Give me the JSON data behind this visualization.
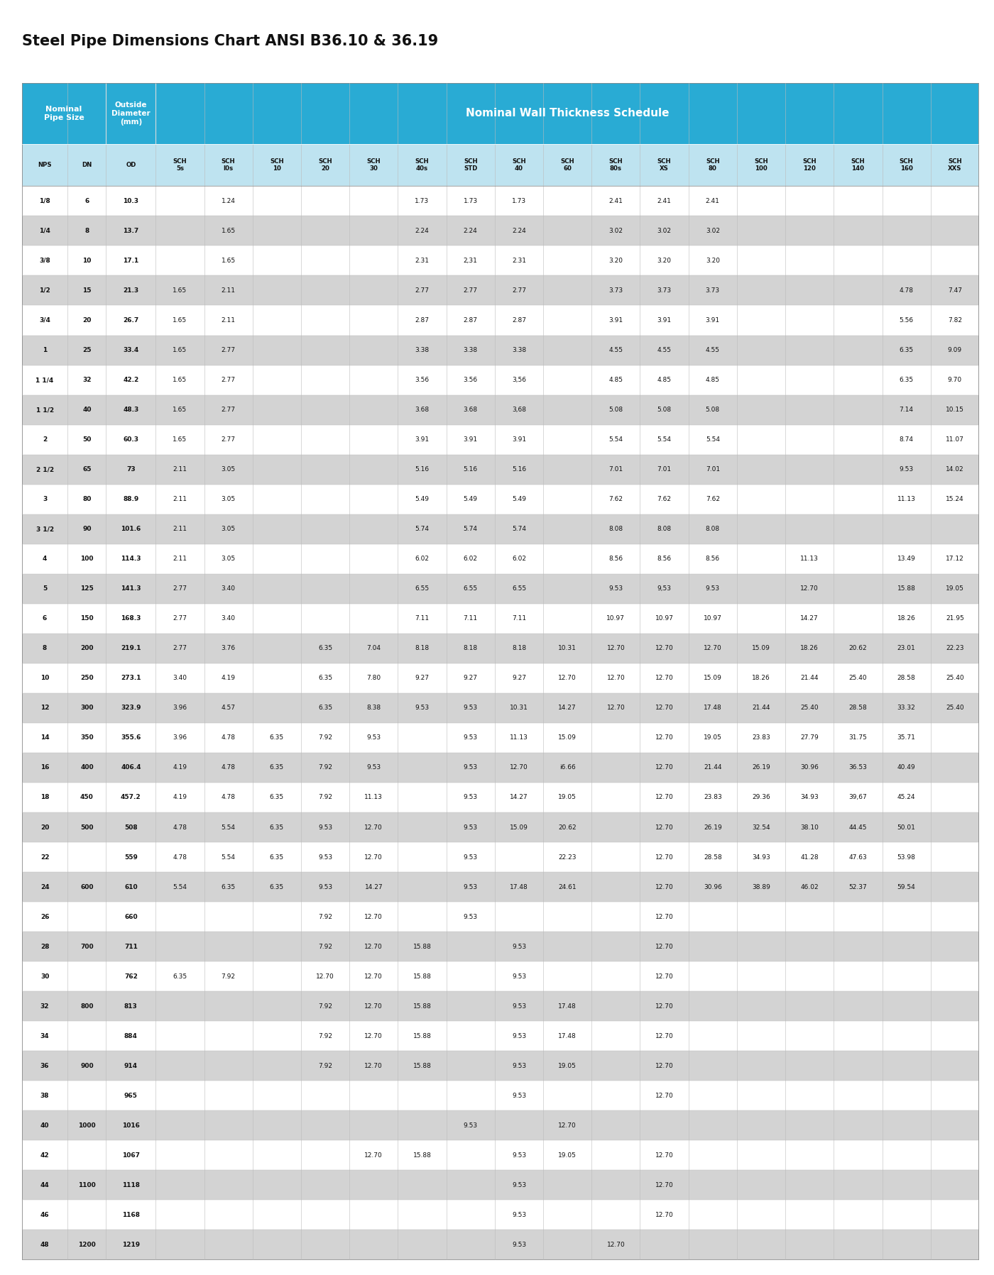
{
  "title": "Steel Pipe Dimensions Chart ANSI B36.10 & 36.19",
  "header_bg_color": "#29ABD4",
  "header_text_color": "#FFFFFF",
  "col_header_bg_color": "#BEE3F0",
  "row_even_color": "#FFFFFF",
  "row_odd_color": "#D3D3D3",
  "border_color": "#AAAAAA",
  "columns": [
    "NPS",
    "DN",
    "OD",
    "SCH\n5s",
    "SCH\nI0s",
    "SCH\n10",
    "SCH\n20",
    "SCH\n30",
    "SCH\n40s",
    "SCH\nSTD",
    "SCH\n40",
    "SCH\n60",
    "SCH\n80s",
    "SCH\nXS",
    "SCH\n80",
    "SCH\n100",
    "SCH\n120",
    "SCH\n140",
    "SCH\n160",
    "SCH\nXXS"
  ],
  "rows": [
    [
      "1/8",
      "6",
      "10.3",
      "",
      "1.24",
      "",
      "",
      "",
      "1.73",
      "1.73",
      "1.73",
      "",
      "2.41",
      "2.41",
      "2.41",
      "",
      "",
      "",
      "",
      ""
    ],
    [
      "1/4",
      "8",
      "13.7",
      "",
      "1.65",
      "",
      "",
      "",
      "2.24",
      "2.24",
      "2.24",
      "",
      "3.02",
      "3.02",
      "3.02",
      "",
      "",
      "",
      "",
      ""
    ],
    [
      "3/8",
      "10",
      "17.1",
      "",
      "1.65",
      "",
      "",
      "",
      "2.31",
      "2,31",
      "2.31",
      "",
      "3.20",
      "3.20",
      "3.20",
      "",
      "",
      "",
      "",
      ""
    ],
    [
      "1/2",
      "15",
      "21.3",
      "1.65",
      "2.11",
      "",
      "",
      "",
      "2.77",
      "2.77",
      "2.77",
      "",
      "3.73",
      "3.73",
      "3.73",
      "",
      "",
      "",
      "4.78",
      "7.47"
    ],
    [
      "3/4",
      "20",
      "26.7",
      "1.65",
      "2.11",
      "",
      "",
      "",
      "2.87",
      "2.87",
      "2.87",
      "",
      "3.91",
      "3.91",
      "3.91",
      "",
      "",
      "",
      "5.56",
      "7.82"
    ],
    [
      "1",
      "25",
      "33.4",
      "1.65",
      "2.77",
      "",
      "",
      "",
      "3.38",
      "3.38",
      "3.38",
      "",
      "4.55",
      "4.55",
      "4.55",
      "",
      "",
      "",
      "6.35",
      "9.09"
    ],
    [
      "1 1/4",
      "32",
      "42.2",
      "1.65",
      "2.77",
      "",
      "",
      "",
      "3.56",
      "3.56",
      "3,56",
      "",
      "4.85",
      "4.85",
      "4.85",
      "",
      "",
      "",
      "6.35",
      "9.70"
    ],
    [
      "1 1/2",
      "40",
      "48.3",
      "1.65",
      "2.77",
      "",
      "",
      "",
      "3.68",
      "3.68",
      "3,68",
      "",
      "5.08",
      "5.08",
      "5.08",
      "",
      "",
      "",
      "7.14",
      "10.15"
    ],
    [
      "2",
      "50",
      "60.3",
      "1.65",
      "2.77",
      "",
      "",
      "",
      "3.91",
      "3.91",
      "3.91",
      "",
      "5.54",
      "5.54",
      "5.54",
      "",
      "",
      "",
      "8.74",
      "11.07"
    ],
    [
      "2 1/2",
      "65",
      "73",
      "2.11",
      "3.05",
      "",
      "",
      "",
      "5.16",
      "5.16",
      "5.16",
      "",
      "7.01",
      "7.01",
      "7.01",
      "",
      "",
      "",
      "9.53",
      "14.02"
    ],
    [
      "3",
      "80",
      "88.9",
      "2.11",
      "3.05",
      "",
      "",
      "",
      "5.49",
      "5.49",
      "5.49",
      "",
      "7.62",
      "7.62",
      "7.62",
      "",
      "",
      "",
      "11.13",
      "15.24"
    ],
    [
      "3 1/2",
      "90",
      "101.6",
      "2.11",
      "3.05",
      "",
      "",
      "",
      "5.74",
      "5.74",
      "5.74",
      "",
      "8.08",
      "8.08",
      "8.08",
      "",
      "",
      "",
      "",
      ""
    ],
    [
      "4",
      "100",
      "114.3",
      "2.11",
      "3.05",
      "",
      "",
      "",
      "6.02",
      "6.02",
      "6.02",
      "",
      "8.56",
      "8.56",
      "8.56",
      "",
      "11.13",
      "",
      "13.49",
      "17.12"
    ],
    [
      "5",
      "125",
      "141.3",
      "2.77",
      "3.40",
      "",
      "",
      "",
      "6.55",
      "6.55",
      "6.55",
      "",
      "9.53",
      "9,53",
      "9.53",
      "",
      "12.70",
      "",
      "15.88",
      "19.05"
    ],
    [
      "6",
      "150",
      "168.3",
      "2.77",
      "3.40",
      "",
      "",
      "",
      "7.11",
      "7.11",
      "7.11",
      "",
      "10.97",
      "10.97",
      "10.97",
      "",
      "14.27",
      "",
      "18.26",
      "21.95"
    ],
    [
      "8",
      "200",
      "219.1",
      "2.77",
      "3.76",
      "",
      "6.35",
      "7.04",
      "8.18",
      "8.18",
      "8.18",
      "10.31",
      "12.70",
      "12.70",
      "12.70",
      "15.09",
      "18.26",
      "20.62",
      "23.01",
      "22.23"
    ],
    [
      "10",
      "250",
      "273.1",
      "3.40",
      "4.19",
      "",
      "6.35",
      "7.80",
      "9.27",
      "9.27",
      "9.27",
      "12.70",
      "12.70",
      "12.70",
      "15.09",
      "18.26",
      "21.44",
      "25.40",
      "28.58",
      "25.40"
    ],
    [
      "12",
      "300",
      "323.9",
      "3.96",
      "4.57",
      "",
      "6.35",
      "8.38",
      "9.53",
      "9.53",
      "10.31",
      "14.27",
      "12.70",
      "12.70",
      "17.48",
      "21.44",
      "25.40",
      "28.58",
      "33.32",
      "25.40"
    ],
    [
      "14",
      "350",
      "355.6",
      "3.96",
      "4.78",
      "6.35",
      "7.92",
      "9.53",
      "",
      "9.53",
      "11.13",
      "15.09",
      "",
      "12.70",
      "19.05",
      "23.83",
      "27.79",
      "31.75",
      "35.71",
      ""
    ],
    [
      "16",
      "400",
      "406.4",
      "4.19",
      "4.78",
      "6.35",
      "7.92",
      "9.53",
      "",
      "9.53",
      "12.70",
      "i6.66",
      "",
      "12.70",
      "21.44",
      "26.19",
      "30.96",
      "36.53",
      "40.49",
      ""
    ],
    [
      "18",
      "450",
      "457.2",
      "4.19",
      "4.78",
      "6.35",
      "7.92",
      "11.13",
      "",
      "9.53",
      "14.27",
      "19.05",
      "",
      "12.70",
      "23.83",
      "29.36",
      "34.93",
      "39,67",
      "45.24",
      ""
    ],
    [
      "20",
      "500",
      "508",
      "4.78",
      "5.54",
      "6.35",
      "9.53",
      "12.70",
      "",
      "9.53",
      "15.09",
      "20.62",
      "",
      "12.70",
      "26.19",
      "32.54",
      "38.10",
      "44.45",
      "50.01",
      ""
    ],
    [
      "22",
      "",
      "559",
      "4.78",
      "5.54",
      "6.35",
      "9.53",
      "12.70",
      "",
      "9.53",
      "",
      "22.23",
      "",
      "12.70",
      "28.58",
      "34.93",
      "41.28",
      "47.63",
      "53.98",
      ""
    ],
    [
      "24",
      "600",
      "610",
      "5.54",
      "6.35",
      "6.35",
      "9.53",
      "14.27",
      "",
      "9.53",
      "17.48",
      "24.61",
      "",
      "12.70",
      "30.96",
      "38.89",
      "46.02",
      "52.37",
      "59.54",
      ""
    ],
    [
      "26",
      "",
      "660",
      "",
      "",
      "",
      "7.92",
      "12.70",
      "",
      "9.53",
      "",
      "",
      "",
      "12.70",
      "",
      "",
      "",
      "",
      "",
      ""
    ],
    [
      "28",
      "700",
      "711",
      "",
      "",
      "",
      "7.92",
      "12.70",
      "15.88",
      "",
      "9.53",
      "",
      "",
      "12.70",
      "",
      "",
      "",
      "",
      "",
      ""
    ],
    [
      "30",
      "",
      "762",
      "6.35",
      "7.92",
      "",
      "12.70",
      "12.70",
      "15.88",
      "",
      "9.53",
      "",
      "",
      "12.70",
      "",
      "",
      "",
      "",
      "",
      ""
    ],
    [
      "32",
      "800",
      "813",
      "",
      "",
      "",
      "7.92",
      "12.70",
      "15.88",
      "",
      "9.53",
      "17.48",
      "",
      "12.70",
      "",
      "",
      "",
      "",
      "",
      ""
    ],
    [
      "34",
      "",
      "884",
      "",
      "",
      "",
      "7.92",
      "12.70",
      "15.88",
      "",
      "9.53",
      "17.48",
      "",
      "12.70",
      "",
      "",
      "",
      "",
      "",
      ""
    ],
    [
      "36",
      "900",
      "914",
      "",
      "",
      "",
      "7.92",
      "12.70",
      "15.88",
      "",
      "9.53",
      "19.05",
      "",
      "12.70",
      "",
      "",
      "",
      "",
      "",
      ""
    ],
    [
      "38",
      "",
      "965",
      "",
      "",
      "",
      "",
      "",
      "",
      "",
      "9.53",
      "",
      "",
      "12.70",
      "",
      "",
      "",
      "",
      "",
      ""
    ],
    [
      "40",
      "1000",
      "1016",
      "",
      "",
      "",
      "",
      "",
      "",
      "9.53",
      "",
      "12.70",
      "",
      "",
      "",
      "",
      "",
      "",
      "",
      ""
    ],
    [
      "42",
      "",
      "1067",
      "",
      "",
      "",
      "",
      "12.70",
      "15.88",
      "",
      "9.53",
      "19.05",
      "",
      "12.70",
      "",
      "",
      "",
      "",
      "",
      ""
    ],
    [
      "44",
      "1100",
      "1118",
      "",
      "",
      "",
      "",
      "",
      "",
      "",
      "9.53",
      "",
      "",
      "12.70",
      "",
      "",
      "",
      "",
      "",
      ""
    ],
    [
      "46",
      "",
      "1168",
      "",
      "",
      "",
      "",
      "",
      "",
      "",
      "9.53",
      "",
      "",
      "12.70",
      "",
      "",
      "",
      "",
      "",
      ""
    ],
    [
      "48",
      "1200",
      "1219",
      "",
      "",
      "",
      "",
      "",
      "",
      "",
      "9.53",
      "",
      "12.70",
      "",
      "",
      "",
      "",
      "",
      "",
      ""
    ]
  ]
}
